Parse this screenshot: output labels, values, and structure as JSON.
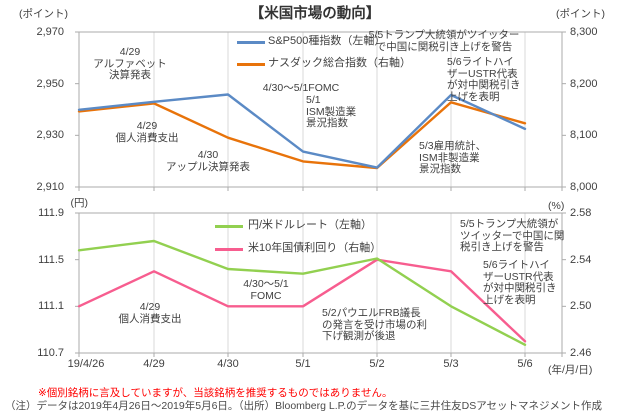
{
  "title": "【米国市場の動向】",
  "x_axis": {
    "unit": "(年/月/日)",
    "categories": [
      "19/4/26",
      "4/29",
      "4/30",
      "5/1",
      "5/2",
      "5/3",
      "5/6"
    ]
  },
  "chart_data": [
    {
      "type": "line",
      "categories": [
        "19/4/26",
        "4/29",
        "4/30",
        "5/1",
        "5/2",
        "5/3",
        "5/6"
      ],
      "left_axis": {
        "unit": "(ポイント)",
        "min": 2910,
        "max": 2970,
        "ticks": [
          "2,970",
          "2,950",
          "2,930",
          "2,910"
        ]
      },
      "right_axis": {
        "unit": "(ポイント)",
        "min": 8000,
        "max": 8300,
        "ticks": [
          "8,300",
          "8,200",
          "8,100",
          "8,000"
        ]
      },
      "series": [
        {
          "name": "S&P500種指数（左軸）",
          "axis": "left",
          "color": "#5B8AC5",
          "values": [
            2939.9,
            2943.0,
            2945.8,
            2923.7,
            2917.5,
            2945.6,
            2932.5
          ]
        },
        {
          "name": "ナスダック総合指数（右軸）",
          "axis": "right",
          "color": "#E8730A",
          "values": [
            8146.4,
            8161.9,
            8095.4,
            8049.6,
            8036.8,
            8164.0,
            8123.3
          ]
        }
      ],
      "annotations": [
        {
          "text": "4/29\nアルファベット\n決算発表"
        },
        {
          "text": "4/29\n個人消費支出"
        },
        {
          "text": "4/30\nアップル決算発表"
        },
        {
          "text": "4/30～5/1FOMC"
        },
        {
          "text": "5/1\nISM製造業\n景況指数"
        },
        {
          "text": "5/3雇用統計、\nISM非製造業\n景況指数"
        },
        {
          "text": "5/5トランプ大統領がツイッター\nで中国に関税引き上げを警告"
        },
        {
          "text": "5/6ライトハイ\nザーUSTR代表\nが対中関税引き\n上げを表明"
        }
      ]
    },
    {
      "type": "line",
      "categories": [
        "19/4/26",
        "4/29",
        "4/30",
        "5/1",
        "5/2",
        "5/3",
        "5/6"
      ],
      "left_axis": {
        "unit": "(円)",
        "min": 110.7,
        "max": 111.9,
        "ticks": [
          "111.9",
          "111.5",
          "111.1",
          "110.7"
        ]
      },
      "right_axis": {
        "unit": "(%)",
        "min": 2.46,
        "max": 2.58,
        "ticks": [
          "2.58",
          "2.54",
          "2.50",
          "2.46"
        ]
      },
      "series": [
        {
          "name": "円/米ドルレート（左軸）",
          "axis": "left",
          "color": "#92D050",
          "values": [
            111.58,
            111.66,
            111.42,
            111.38,
            111.51,
            111.1,
            110.77
          ]
        },
        {
          "name": "米10年国債利回り（右軸）",
          "axis": "right",
          "color": "#F75D8F",
          "values": [
            2.5,
            2.53,
            2.5,
            2.5,
            2.54,
            2.53,
            2.47
          ]
        }
      ],
      "annotations": [
        {
          "text": "4/29\n個人消費支出"
        },
        {
          "text": "4/30～5/1\nFOMC"
        },
        {
          "text": "5/2パウエルFRB議長\nの発言を受け市場の利\n下げ観測が後退"
        },
        {
          "text": "5/5トランプ大統領が\nツイッターで中国に関\n税引き上げを警告"
        },
        {
          "text": "5/6ライトハイ\nザーUSTR代表\nが対中関税引き\n上げを表明"
        }
      ]
    }
  ],
  "footer": {
    "disclaimer": "※個別銘柄に言及していますが、当該銘柄を推奨するものではありません。",
    "note": "（注）データは2019年4月26日～2019年5月6日。（出所）Bloomberg L.P.のデータを基に三井住友DSアセットマネジメント作成"
  }
}
